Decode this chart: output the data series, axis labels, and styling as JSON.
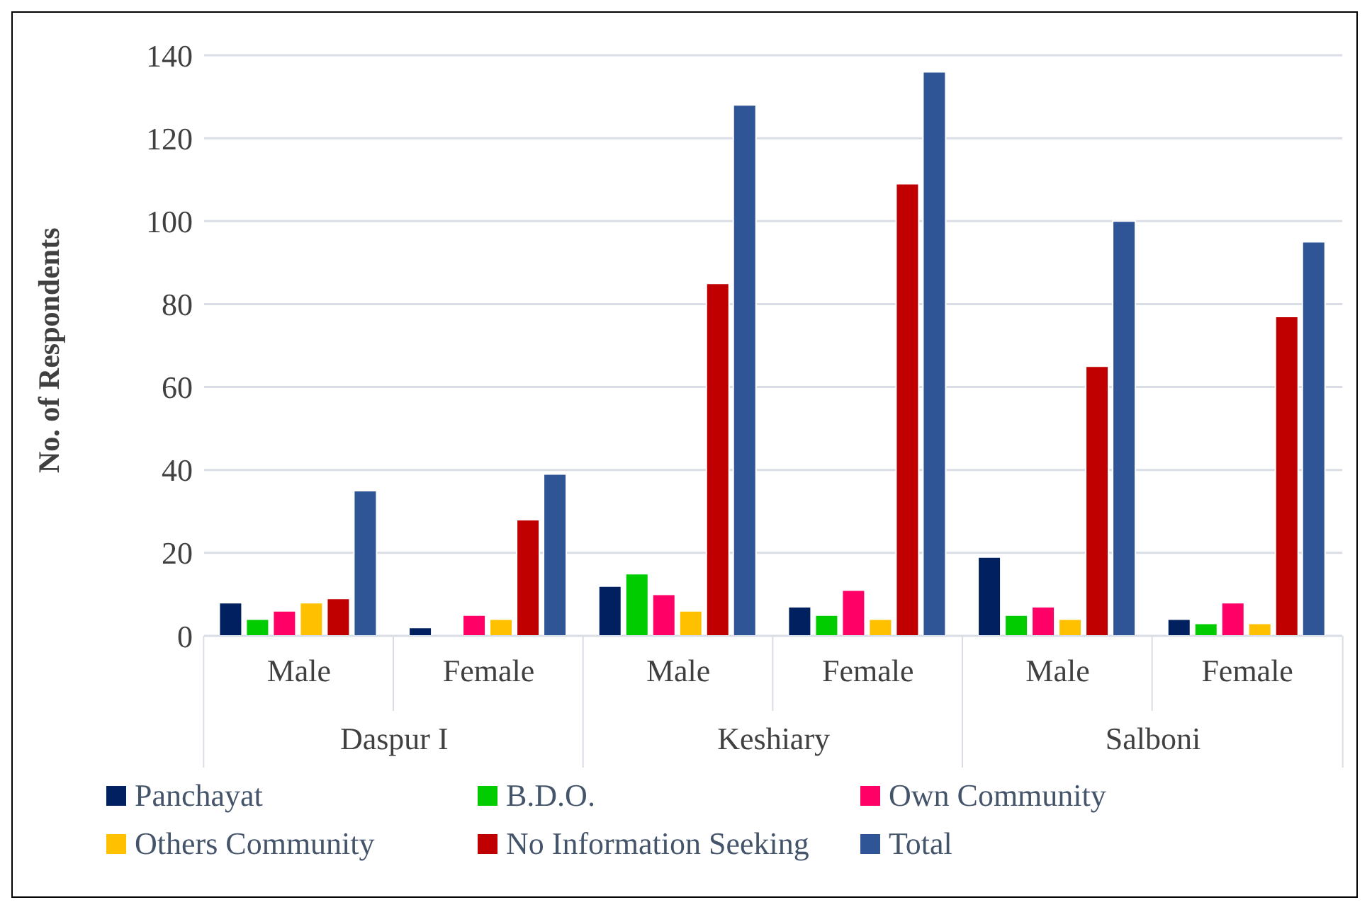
{
  "chart_data": {
    "type": "bar",
    "ylabel": "No. of Respondents",
    "categories": [
      "Male",
      "Female",
      "Male",
      "Female",
      "Male",
      "Female"
    ],
    "annotations": [
      "Daspur I",
      "Keshiary",
      "Salboni"
    ],
    "series": [
      {
        "name": "Panchayat",
        "color": "#002060",
        "values": [
          8,
          2,
          12,
          7,
          19,
          4
        ]
      },
      {
        "name": "B.D.O.",
        "color": "#00cc00",
        "values": [
          4,
          0,
          15,
          5,
          5,
          3
        ]
      },
      {
        "name": "Own Community",
        "color": "#ff0066",
        "values": [
          6,
          5,
          10,
          11,
          7,
          8
        ]
      },
      {
        "name": "Others Community",
        "color": "#ffc000",
        "values": [
          8,
          4,
          6,
          4,
          4,
          3
        ]
      },
      {
        "name": "No Information Seeking",
        "color": "#c00000",
        "values": [
          9,
          28,
          85,
          109,
          65,
          77
        ]
      },
      {
        "name": "Total",
        "color": "#2f5597",
        "values": [
          35,
          39,
          128,
          136,
          100,
          95
        ]
      }
    ],
    "ylim": [
      0,
      140
    ],
    "yticks": [
      0,
      20,
      40,
      60,
      80,
      100,
      120,
      140
    ],
    "grid": "y",
    "legend": "bottom"
  }
}
